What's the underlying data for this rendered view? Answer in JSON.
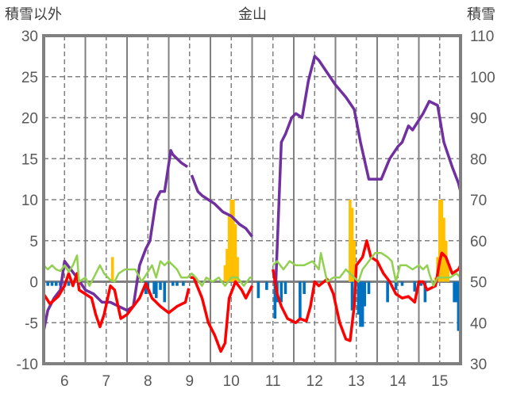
{
  "chart_data": {
    "type": "bar+line",
    "title": "金山",
    "ylabel_left": "積雪以外",
    "ylabel_right": "積雪",
    "ylim_left": [
      -10,
      30
    ],
    "ylim_right": [
      30,
      110
    ],
    "yticks_left": [
      "30",
      "25",
      "20",
      "15",
      "10",
      "5",
      "0",
      "-5",
      "-10"
    ],
    "yticks_right": [
      "110",
      "100",
      "90",
      "80",
      "70",
      "60",
      "50",
      "40",
      "30"
    ],
    "xlim": [
      5.5,
      15.5
    ],
    "xticks": [
      "6",
      "7",
      "8",
      "9",
      "10",
      "11",
      "12",
      "13",
      "14",
      "15"
    ],
    "grid": true,
    "colors": {
      "snow_depth": "#7030A0",
      "red_series": "#FF0000",
      "green_series": "#92D050",
      "positive_bars": "#FFC000",
      "negative_bars": "#0070C0",
      "axis": "#808080"
    },
    "series": [
      {
        "name": "snow_depth",
        "axis": "right",
        "type": "line",
        "points": [
          [
            5.5,
            38
          ],
          [
            5.6,
            43
          ],
          [
            5.75,
            46
          ],
          [
            5.9,
            48
          ],
          [
            6.0,
            55
          ],
          [
            6.15,
            53
          ],
          [
            6.3,
            51
          ],
          [
            6.5,
            48
          ],
          [
            6.7,
            47
          ],
          [
            6.9,
            45
          ],
          [
            7.1,
            45
          ],
          [
            7.3,
            44
          ],
          [
            7.5,
            43
          ],
          [
            7.65,
            44
          ],
          [
            7.8,
            54
          ],
          [
            7.95,
            58
          ],
          [
            8.05,
            60
          ],
          [
            8.2,
            70
          ],
          [
            8.3,
            72
          ],
          [
            8.4,
            72
          ],
          [
            8.55,
            82
          ],
          [
            8.6,
            81
          ],
          [
            8.7,
            80
          ],
          [
            8.8,
            79
          ],
          [
            8.95,
            78
          ],
          [
            9.0,
            null
          ],
          [
            9.05,
            76
          ],
          [
            9.2,
            72
          ],
          [
            9.3,
            71
          ],
          [
            9.45,
            70
          ],
          [
            9.6,
            69
          ],
          [
            9.8,
            67
          ],
          [
            10.0,
            66
          ],
          [
            10.2,
            64
          ],
          [
            10.35,
            63
          ],
          [
            10.5,
            61
          ],
          [
            10.55,
            null
          ],
          [
            11.0,
            50
          ],
          [
            11.07,
            50
          ],
          [
            11.2,
            84
          ],
          [
            11.3,
            86
          ],
          [
            11.45,
            90
          ],
          [
            11.55,
            91
          ],
          [
            11.7,
            90
          ],
          [
            11.85,
            99
          ],
          [
            12.0,
            105
          ],
          [
            12.1,
            104
          ],
          [
            12.3,
            101
          ],
          [
            12.5,
            98
          ],
          [
            12.75,
            95
          ],
          [
            12.95,
            92
          ],
          [
            13.1,
            84
          ],
          [
            13.3,
            75
          ],
          [
            13.6,
            75
          ],
          [
            13.8,
            80
          ],
          [
            14.0,
            83
          ],
          [
            14.1,
            84
          ],
          [
            14.25,
            88
          ],
          [
            14.35,
            87
          ],
          [
            14.6,
            91
          ],
          [
            14.75,
            94
          ],
          [
            14.95,
            93
          ],
          [
            15.1,
            84
          ],
          [
            15.3,
            78
          ],
          [
            15.45,
            74
          ],
          [
            15.5,
            72
          ]
        ]
      },
      {
        "name": "red_series",
        "axis": "left",
        "type": "line",
        "points": [
          [
            5.5,
            -1.5
          ],
          [
            5.65,
            -2.7
          ],
          [
            5.85,
            -1.8
          ],
          [
            6.0,
            -0.5
          ],
          [
            6.1,
            1
          ],
          [
            6.2,
            -0.5
          ],
          [
            6.3,
            1
          ],
          [
            6.35,
            -1
          ],
          [
            6.5,
            -1.5
          ],
          [
            6.65,
            -2
          ],
          [
            6.75,
            -4
          ],
          [
            6.85,
            -5.5
          ],
          [
            6.95,
            -4
          ],
          [
            7.1,
            -0.5
          ],
          [
            7.2,
            -1
          ],
          [
            7.35,
            -4.5
          ],
          [
            7.5,
            -4
          ],
          [
            7.65,
            -3
          ],
          [
            7.8,
            -2
          ],
          [
            7.95,
            -0.2
          ],
          [
            8.1,
            -2
          ],
          [
            8.3,
            -3
          ],
          [
            8.5,
            -3.8
          ],
          [
            8.7,
            -3
          ],
          [
            8.9,
            -2.5
          ],
          [
            8.98,
            -0.8
          ],
          [
            9.0,
            null
          ],
          [
            9.02,
            0.5
          ],
          [
            9.1,
            0.5
          ],
          [
            9.3,
            -2
          ],
          [
            9.45,
            -5
          ],
          [
            9.6,
            -6.5
          ],
          [
            9.75,
            -8.5
          ],
          [
            9.85,
            -7.5
          ],
          [
            9.95,
            -2
          ],
          [
            10.1,
            0
          ],
          [
            10.25,
            -1
          ],
          [
            10.35,
            -2
          ],
          [
            10.5,
            -0.5
          ],
          [
            10.55,
            null
          ],
          [
            11.0,
            1.5
          ],
          [
            11.1,
            -1.5
          ],
          [
            11.2,
            -3
          ],
          [
            11.35,
            -4.5
          ],
          [
            11.55,
            -5
          ],
          [
            11.65,
            -4.5
          ],
          [
            11.8,
            -4.8
          ],
          [
            11.9,
            -3
          ],
          [
            12.0,
            0
          ],
          [
            12.1,
            -0.5
          ],
          [
            12.3,
            0.3
          ],
          [
            12.45,
            -1.5
          ],
          [
            12.6,
            -5
          ],
          [
            12.75,
            -7
          ],
          [
            12.85,
            -7.2
          ],
          [
            12.95,
            -3
          ],
          [
            13.0,
            2
          ],
          [
            13.15,
            3
          ],
          [
            13.25,
            5
          ],
          [
            13.35,
            3
          ],
          [
            13.5,
            2.5
          ],
          [
            13.65,
            1
          ],
          [
            13.8,
            0
          ],
          [
            13.95,
            -1.5
          ],
          [
            14.1,
            -2
          ],
          [
            14.25,
            -1.8
          ],
          [
            14.4,
            -2.5
          ],
          [
            14.5,
            0
          ],
          [
            14.6,
            0
          ],
          [
            14.7,
            -1
          ],
          [
            14.9,
            -0.5
          ],
          [
            15.0,
            2.5
          ],
          [
            15.05,
            3.5
          ],
          [
            15.15,
            3
          ],
          [
            15.3,
            1
          ],
          [
            15.45,
            1.5
          ],
          [
            15.5,
            2
          ]
        ]
      },
      {
        "name": "green_series",
        "axis": "left",
        "type": "line",
        "points": [
          [
            5.5,
            2
          ],
          [
            5.6,
            1.5
          ],
          [
            5.7,
            2
          ],
          [
            5.8,
            1.5
          ],
          [
            5.9,
            1.3
          ],
          [
            6.0,
            2
          ],
          [
            6.1,
            1.2
          ],
          [
            6.2,
            2
          ],
          [
            6.3,
            3.2
          ],
          [
            6.35,
            0
          ],
          [
            6.5,
            0.5
          ],
          [
            6.6,
            -0.5
          ],
          [
            6.7,
            0.5
          ],
          [
            6.85,
            2
          ],
          [
            6.95,
            1
          ],
          [
            7.1,
            0.2
          ],
          [
            7.2,
            0
          ],
          [
            7.3,
            1
          ],
          [
            7.45,
            1.5
          ],
          [
            7.55,
            1.5
          ],
          [
            7.7,
            1.5
          ],
          [
            7.85,
            0
          ],
          [
            8.0,
            1.2
          ],
          [
            8.1,
            2
          ],
          [
            8.2,
            0.5
          ],
          [
            8.3,
            2.5
          ],
          [
            8.4,
            2
          ],
          [
            8.5,
            2.5
          ],
          [
            8.6,
            2
          ],
          [
            8.7,
            1.5
          ],
          [
            8.8,
            0.5
          ],
          [
            8.95,
            0.5
          ],
          [
            9.05,
            1
          ],
          [
            9.15,
            0.5
          ],
          [
            9.3,
            -0.5
          ],
          [
            9.4,
            0.5
          ],
          [
            9.55,
            0
          ],
          [
            9.7,
            0.5
          ],
          [
            9.85,
            -0.5
          ],
          [
            10.0,
            0.5
          ],
          [
            10.15,
            0.5
          ],
          [
            10.3,
            -0.5
          ],
          [
            10.45,
            0.5
          ],
          [
            10.5,
            0.5
          ],
          [
            10.55,
            null
          ],
          [
            11.0,
            2
          ],
          [
            11.1,
            2.5
          ],
          [
            11.25,
            1.5
          ],
          [
            11.4,
            2.5
          ],
          [
            11.55,
            2
          ],
          [
            11.75,
            2
          ],
          [
            11.95,
            2.5
          ],
          [
            12.1,
            1.5
          ],
          [
            12.15,
            3.5
          ],
          [
            12.3,
            0
          ],
          [
            12.45,
            0.5
          ],
          [
            12.6,
            0.5
          ],
          [
            12.75,
            1.5
          ],
          [
            12.95,
            0.5
          ],
          [
            13.05,
            0
          ],
          [
            13.15,
            1.5
          ],
          [
            13.3,
            2.5
          ],
          [
            13.45,
            3.5
          ],
          [
            13.6,
            3.5
          ],
          [
            13.75,
            3
          ],
          [
            13.85,
            2.5
          ],
          [
            13.95,
            0
          ],
          [
            14.05,
            2
          ],
          [
            14.2,
            2
          ],
          [
            14.35,
            1.5
          ],
          [
            14.5,
            2
          ],
          [
            14.6,
            1.5
          ],
          [
            14.7,
            2
          ],
          [
            14.75,
            1
          ],
          [
            14.85,
            -0.5
          ],
          [
            14.95,
            0.5
          ],
          [
            15.1,
            0.5
          ],
          [
            15.25,
            0.5
          ],
          [
            15.4,
            1
          ],
          [
            15.5,
            0.5
          ]
        ]
      },
      {
        "name": "positive_bars",
        "axis": "left",
        "type": "bar",
        "points": [
          [
            7.15,
            3
          ],
          [
            9.85,
            2
          ],
          [
            9.9,
            4
          ],
          [
            9.95,
            8
          ],
          [
            10.0,
            10
          ],
          [
            10.05,
            10
          ],
          [
            10.1,
            7
          ],
          [
            10.15,
            3
          ],
          [
            12.85,
            10
          ],
          [
            12.9,
            9
          ],
          [
            12.95,
            5
          ],
          [
            14.9,
            0.5
          ],
          [
            14.95,
            3
          ],
          [
            15.0,
            10
          ],
          [
            15.05,
            10
          ],
          [
            15.1,
            7.8
          ],
          [
            15.15,
            5
          ],
          [
            15.2,
            2
          ]
        ]
      },
      {
        "name": "negative_bars",
        "axis": "left",
        "type": "bar",
        "points": [
          [
            5.6,
            -0.5
          ],
          [
            5.7,
            -0.5
          ],
          [
            5.8,
            -0.5
          ],
          [
            5.9,
            -0.5
          ],
          [
            6.0,
            -0.5
          ],
          [
            6.1,
            -0.5
          ],
          [
            6.2,
            -0.5
          ],
          [
            7.95,
            -1.5
          ],
          [
            8.0,
            -1
          ],
          [
            8.15,
            -1.5
          ],
          [
            8.2,
            -2
          ],
          [
            8.3,
            -1
          ],
          [
            8.4,
            -2.5
          ],
          [
            8.6,
            -0.5
          ],
          [
            8.7,
            -0.5
          ],
          [
            8.85,
            -0.5
          ],
          [
            10.65,
            -2
          ],
          [
            10.85,
            -1
          ],
          [
            11.05,
            -4.5
          ],
          [
            11.1,
            -2.5
          ],
          [
            11.2,
            -2.5
          ],
          [
            11.3,
            -1.5
          ],
          [
            11.65,
            -4.5
          ],
          [
            11.75,
            -1.5
          ],
          [
            12.9,
            -3.5
          ],
          [
            13.05,
            -4
          ],
          [
            13.1,
            -5.5
          ],
          [
            13.15,
            -5.5
          ],
          [
            13.2,
            -3
          ],
          [
            13.3,
            -1.5
          ],
          [
            13.75,
            -2.5
          ],
          [
            13.95,
            -1
          ],
          [
            14.1,
            -0.5
          ],
          [
            14.4,
            -1.2
          ],
          [
            14.55,
            -0.5
          ],
          [
            14.65,
            -2.5
          ],
          [
            15.35,
            -2.5
          ],
          [
            15.4,
            -2.5
          ],
          [
            15.45,
            -6
          ]
        ]
      }
    ]
  }
}
